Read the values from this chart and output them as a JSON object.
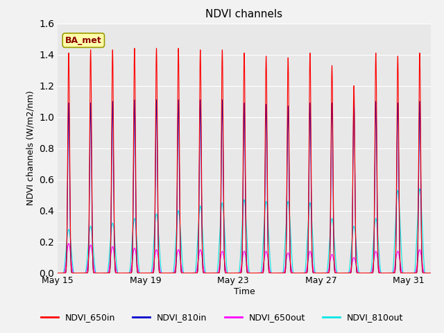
{
  "title": "NDVI channels",
  "xlabel": "Time",
  "ylabel": "NDVI channels (W/m2/nm)",
  "ylim": [
    0.0,
    1.6
  ],
  "series": {
    "NDVI_650in": {
      "color": "#ff0000",
      "label": "NDVI_650in"
    },
    "NDVI_810in": {
      "color": "#0000cd",
      "label": "NDVI_810in"
    },
    "NDVI_650out": {
      "color": "#ff00ff",
      "label": "NDVI_650out"
    },
    "NDVI_810out": {
      "color": "#00e5e5",
      "label": "NDVI_810out"
    }
  },
  "amp_650in": [
    1.41,
    1.43,
    1.43,
    1.44,
    1.44,
    1.44,
    1.43,
    1.43,
    1.41,
    1.39,
    1.38,
    1.41,
    1.33,
    1.2,
    1.41,
    1.39,
    1.41
  ],
  "amp_810in": [
    1.09,
    1.09,
    1.1,
    1.11,
    1.11,
    1.11,
    1.11,
    1.11,
    1.09,
    1.08,
    1.07,
    1.09,
    1.09,
    1.1,
    1.1,
    1.09,
    1.1
  ],
  "amp_650out": [
    0.19,
    0.18,
    0.17,
    0.16,
    0.15,
    0.15,
    0.15,
    0.14,
    0.14,
    0.14,
    0.13,
    0.14,
    0.12,
    0.1,
    0.14,
    0.14,
    0.15
  ],
  "amp_810out": [
    0.28,
    0.3,
    0.32,
    0.35,
    0.38,
    0.4,
    0.43,
    0.45,
    0.47,
    0.46,
    0.46,
    0.45,
    0.35,
    0.3,
    0.35,
    0.53,
    0.54
  ],
  "total_days": 17,
  "annotation_text": "BA_met",
  "annotation_facecolor": "#ffffaa",
  "annotation_edgecolor": "#999900",
  "plot_facecolor": "#e8e8e8",
  "fig_facecolor": "#f2f2f2",
  "grid_color": "#ffffff",
  "xtick_labels": [
    "May 15",
    "May 19",
    "May 23",
    "May 27",
    "May 31"
  ],
  "xtick_days": [
    0,
    4,
    8,
    12,
    16
  ],
  "figsize": [
    6.4,
    4.8
  ],
  "dpi": 100
}
